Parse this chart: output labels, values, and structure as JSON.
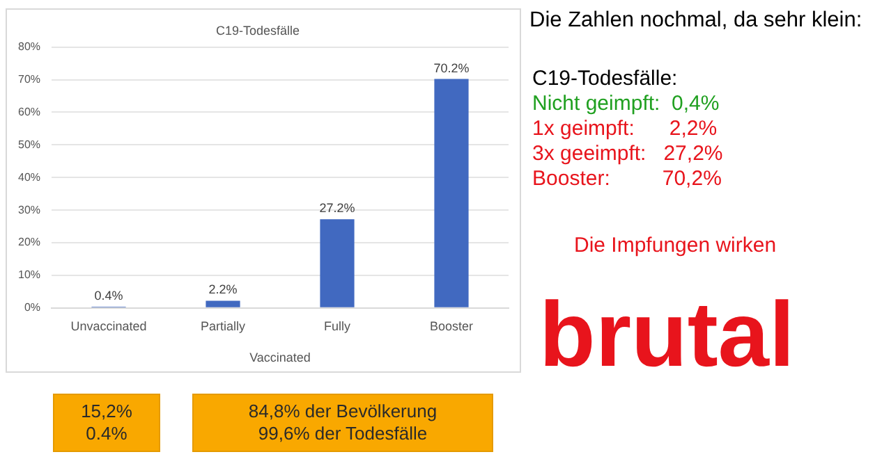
{
  "chart_data": {
    "type": "bar",
    "title": "C19-Todesfälle",
    "xlabel": "Vaccinated",
    "categories": [
      "Unvaccinated",
      "Partially",
      "Fully",
      "Booster"
    ],
    "values": [
      0.4,
      2.2,
      27.2,
      70.2
    ],
    "color": "#4169c0",
    "value_labels": [
      "0.4%",
      "2.2%",
      "27.2%",
      "70.2%"
    ],
    "ylim": [
      0,
      80
    ],
    "yticks": [
      {
        "value": 0,
        "label": "0%"
      },
      {
        "value": 10,
        "label": "10%"
      },
      {
        "value": 20,
        "label": "20%"
      },
      {
        "value": 30,
        "label": "30%"
      },
      {
        "value": 40,
        "label": "40%"
      },
      {
        "value": 50,
        "label": "50%"
      },
      {
        "value": 60,
        "label": "60%"
      },
      {
        "value": 70,
        "label": "70%"
      },
      {
        "value": 80,
        "label": "80%"
      }
    ],
    "grid": "y",
    "legend": false,
    "annotations": [
      "Die Zahlen nochmal, da sehr klein:",
      "C19-Todesfälle:",
      "Nicht geimpft:  0,4%",
      "1x geimpft:      2,2%",
      "3x geeimpft:   27,2%",
      "Booster:         70,2%",
      "Die Impfungen wirken",
      "brutal",
      "15,2%",
      "0.4%",
      "84,8% der Bevölkerung",
      "99,6% der Todesfälle"
    ]
  }
}
